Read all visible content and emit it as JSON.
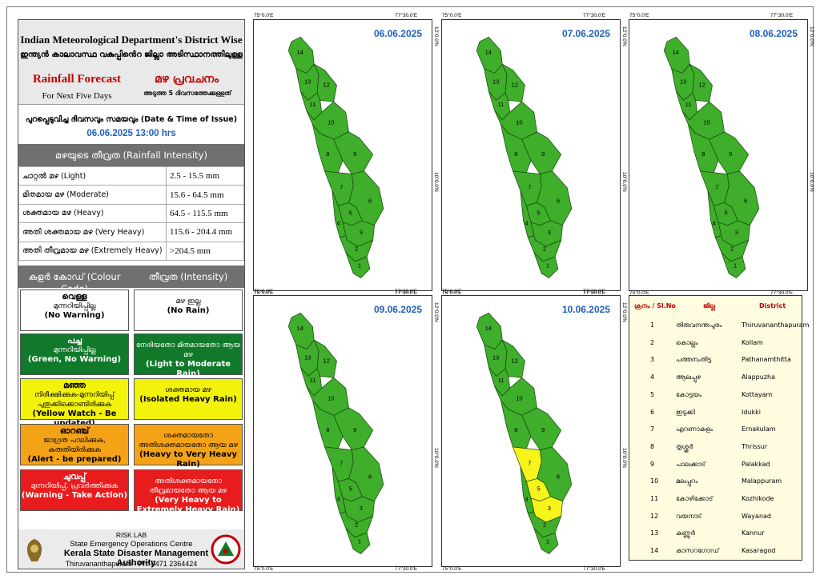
{
  "header": {
    "title_en": "Indian Meteorological Department's District Wise",
    "title_ml": "ഇന്ത്യൻ കാലാവസ്ഥ വകുപ്പിൻെറ ജില്ലാ അടിസ്ഥാനത്തിലുള്ള",
    "forecast_en": "Rainfall Forecast",
    "forecast_ml": "മഴ പ്രവചനം",
    "next_en": "For Next Five Days",
    "next_ml": "അടുത്ത 5 ദിവസത്തേക്കുള്ളത്"
  },
  "issue": {
    "label": "പുറപ്പെടുവിച്ച ദിവസവും സമയവും (Date & Time of Issue)",
    "datetime": "06.06.2025 13:00 hrs"
  },
  "intensity": {
    "title": "മഴയുടെ തീവ്രത (Rainfall Intensity)",
    "rows": [
      {
        "label": "ചാറ്റൽ മഴ (Light)",
        "range": "2.5 - 15.5 mm"
      },
      {
        "label": "മിതമായ മഴ (Moderate)",
        "range": "15.6 - 64.5 mm"
      },
      {
        "label": "ശക്തമായ മഴ (Heavy)",
        "range": "64.5 - 115.5 mm"
      },
      {
        "label": "അതി ശക്തമായ മഴ (Very Heavy)",
        "range": "115.6 - 204.4 mm"
      },
      {
        "label": "അതി തീവ്രമായ മഴ (Extremely Heavy)",
        "range": ">204.5 mm"
      }
    ]
  },
  "colour_header": {
    "left": "കളർ കോഡ് (Colour Code)",
    "right": "തീവ്രത (Intensity)"
  },
  "colour_codes": [
    {
      "name_ml": "വെള്ള",
      "desc_ml": "മുന്നറിയിപ്പില്ല",
      "en": "(No Warning)",
      "int_ml": "മഴ ഇല്ല",
      "int_en": "(No Rain)",
      "bg": "#ffffff",
      "fg": "#000000"
    },
    {
      "name_ml": "പച്ച",
      "desc_ml": "മുന്നറിയിപ്പില്ല",
      "en": "(Green, No Warning)",
      "int_ml": "നേരിയതോ മിതമായതോ ആയ മഴ",
      "int_en": "(Light to Moderate Rain)",
      "bg": "#117a2a",
      "fg": "#ffffff"
    },
    {
      "name_ml": "മഞ്ഞ",
      "desc_ml": "നിരീക്ഷിക്കുക-മുന്നറിയിപ്പ് പുതുക്കിക്കൊണ്ടിരിക്കുക",
      "en": "(Yellow Watch - Be updated)",
      "int_ml": "ശക്തമായ മഴ",
      "int_en": "(Isolated Heavy Rain)",
      "bg": "#f2f20a",
      "fg": "#000000"
    },
    {
      "name_ml": "ഓറഞ്ച്",
      "desc_ml": "ജാഗ്രത പാലിക്കുക, കരുതിയിരിക്കുക",
      "en": "(Alert - be prepared)",
      "int_ml": "ശക്തമായതോ അതിശക്തമായതോ ആയ മഴ",
      "int_en": "(Heavy to Very Heavy Rain)",
      "bg": "#f5a316",
      "fg": "#000000"
    },
    {
      "name_ml": "ചുവപ്പ്",
      "desc_ml": "മുന്നറിയിപ്പ്, പ്രവർത്തിക്കുക",
      "en": "(Warning - Take Action)",
      "int_ml": "അതിശക്തമായതോ തീവ്രമായതോ ആയ മഴ",
      "int_en": "(Very Heavy to Extremely Heavy Rain)",
      "bg": "#e81c1c",
      "fg": "#ffffff"
    }
  ],
  "footer": {
    "lab": "RISK LAB",
    "centre": "State Emergency Operations Centre",
    "authority": "Kerala State Disaster Management Authority",
    "contact": "Thiruvananthapuram - Ph: 0471 2364424"
  },
  "axis": {
    "lon1": "75°0.0'E",
    "lon2": "77°30.0'E",
    "lat1": "12°0.0'N",
    "lat2": "10°0.0'N"
  },
  "colors": {
    "green": "#3fae2a",
    "yellow": "#f7f41c",
    "border": "#1a4a12"
  },
  "maps": [
    {
      "date": "06.06.2025",
      "yellow": []
    },
    {
      "date": "07.06.2025",
      "yellow": []
    },
    {
      "date": "08.06.2025",
      "yellow": []
    },
    {
      "date": "09.06.2025",
      "yellow": []
    },
    {
      "date": "10.06.2025",
      "yellow": [
        "3",
        "5",
        "7"
      ]
    }
  ],
  "district_table": {
    "col_no": "ക്രനം / Sl.No",
    "col_ml": "ജില്ല",
    "col_en": "District",
    "rows": [
      {
        "no": "1",
        "ml": "തിരുവനന്തപുരം",
        "en": "Thiruvananthapuram"
      },
      {
        "no": "2",
        "ml": "കൊല്ലം",
        "en": "Kollam"
      },
      {
        "no": "3",
        "ml": "പത്തനംതിട്ട",
        "en": "Pathanamthitta"
      },
      {
        "no": "4",
        "ml": "ആലപ്പുഴ",
        "en": "Alappuzha"
      },
      {
        "no": "5",
        "ml": "കോട്ടയം",
        "en": "Kottayam"
      },
      {
        "no": "6",
        "ml": "ഇടുക്കി",
        "en": "Idukki"
      },
      {
        "no": "7",
        "ml": "എറണാകുളം",
        "en": "Ernakulam"
      },
      {
        "no": "8",
        "ml": "തൃശ്ശൂർ",
        "en": "Thrissur"
      },
      {
        "no": "9",
        "ml": "പാലക്കാട്",
        "en": "Palakkad"
      },
      {
        "no": "10",
        "ml": "മലപ്പുറം",
        "en": "Malappuram"
      },
      {
        "no": "11",
        "ml": "കോഴിക്കോട്",
        "en": "Kozhikode"
      },
      {
        "no": "12",
        "ml": "വയനാട്",
        "en": "Wayanad"
      },
      {
        "no": "13",
        "ml": "കണ്ണൂർ",
        "en": "Kannur"
      },
      {
        "no": "14",
        "ml": "കാസറഗോഡ്",
        "en": "Kasaragod"
      }
    ]
  }
}
